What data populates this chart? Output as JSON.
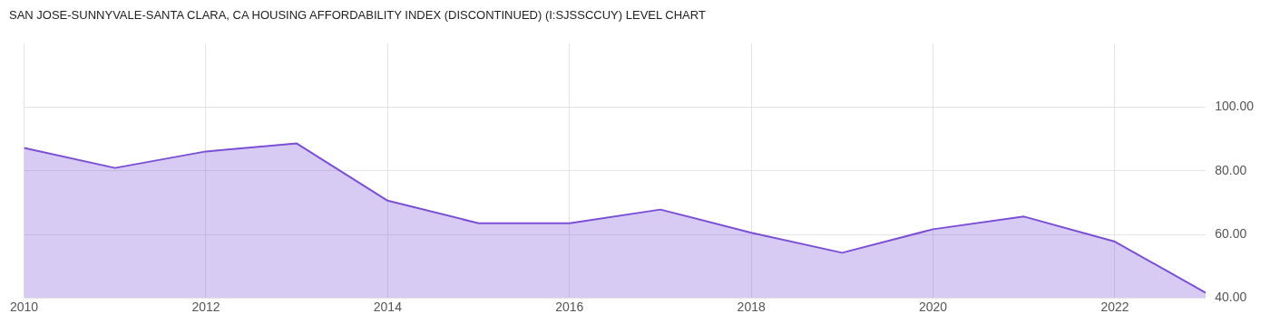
{
  "chart_data": {
    "type": "area",
    "title": "SAN JOSE-SUNNYVALE-SANTA CLARA, CA HOUSING AFFORDABILITY INDEX (DISCONTINUED) (I:SJSSCCUY) LEVEL CHART",
    "x": [
      2010,
      2011,
      2012,
      2013,
      2014,
      2015,
      2016,
      2017,
      2018,
      2019,
      2020,
      2021,
      2022,
      2023
    ],
    "series": [
      {
        "color": "#7b4fd6",
        "values": [
          87.2,
          80.9,
          86.1,
          88.6,
          70.6,
          63.5,
          63.5,
          67.8,
          60.5,
          54.2,
          61.6,
          65.6,
          57.7,
          41.6
        ]
      }
    ],
    "xlim": [
      2010,
      2023
    ],
    "xticks": [
      2010,
      2012,
      2014,
      2016,
      2018,
      2020,
      2022
    ],
    "ylim": [
      40,
      120
    ],
    "yticks": [
      {
        "value": 40,
        "label": "40.00"
      },
      {
        "value": 60,
        "label": "60.00"
      },
      {
        "value": 80,
        "label": "80.00"
      },
      {
        "value": 100,
        "label": "100.00"
      }
    ],
    "grid": true,
    "legend": false
  }
}
